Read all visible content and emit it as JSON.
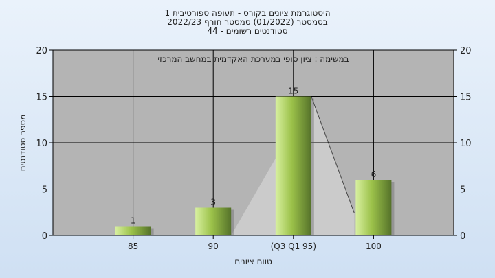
{
  "chart_data": {
    "type": "bar",
    "title": [
      "היסטוגרמת ציונים בקורס - תעופה ספורטיבית 1",
      "בסמסטר  (01/2022)  סמסטר חורף  2022/23",
      "סטודנטים רשומים - 44"
    ],
    "annotation": "במשימה : ציון סופי במערכת האקדמית במחשב המרכזי",
    "categories": [
      "85",
      "90",
      "(Q3 Q1 95)",
      "100"
    ],
    "values": [
      1,
      3,
      15,
      6
    ],
    "data_labels": [
      "1",
      "3",
      "15",
      "6"
    ],
    "xlabel": "טווח ציונים",
    "ylabel": "מספר סטודנטים",
    "ylim": [
      0,
      20
    ],
    "yticks": [
      0,
      5,
      10,
      15,
      20
    ],
    "grid": true,
    "colors": {
      "plot_bg": "#b4b4b4",
      "bar_light": "#d8f0a0",
      "bar_mid": "#9cc24a",
      "bar_dark": "#55722a",
      "area": "#cfcfcf",
      "grid": "#000000"
    }
  }
}
